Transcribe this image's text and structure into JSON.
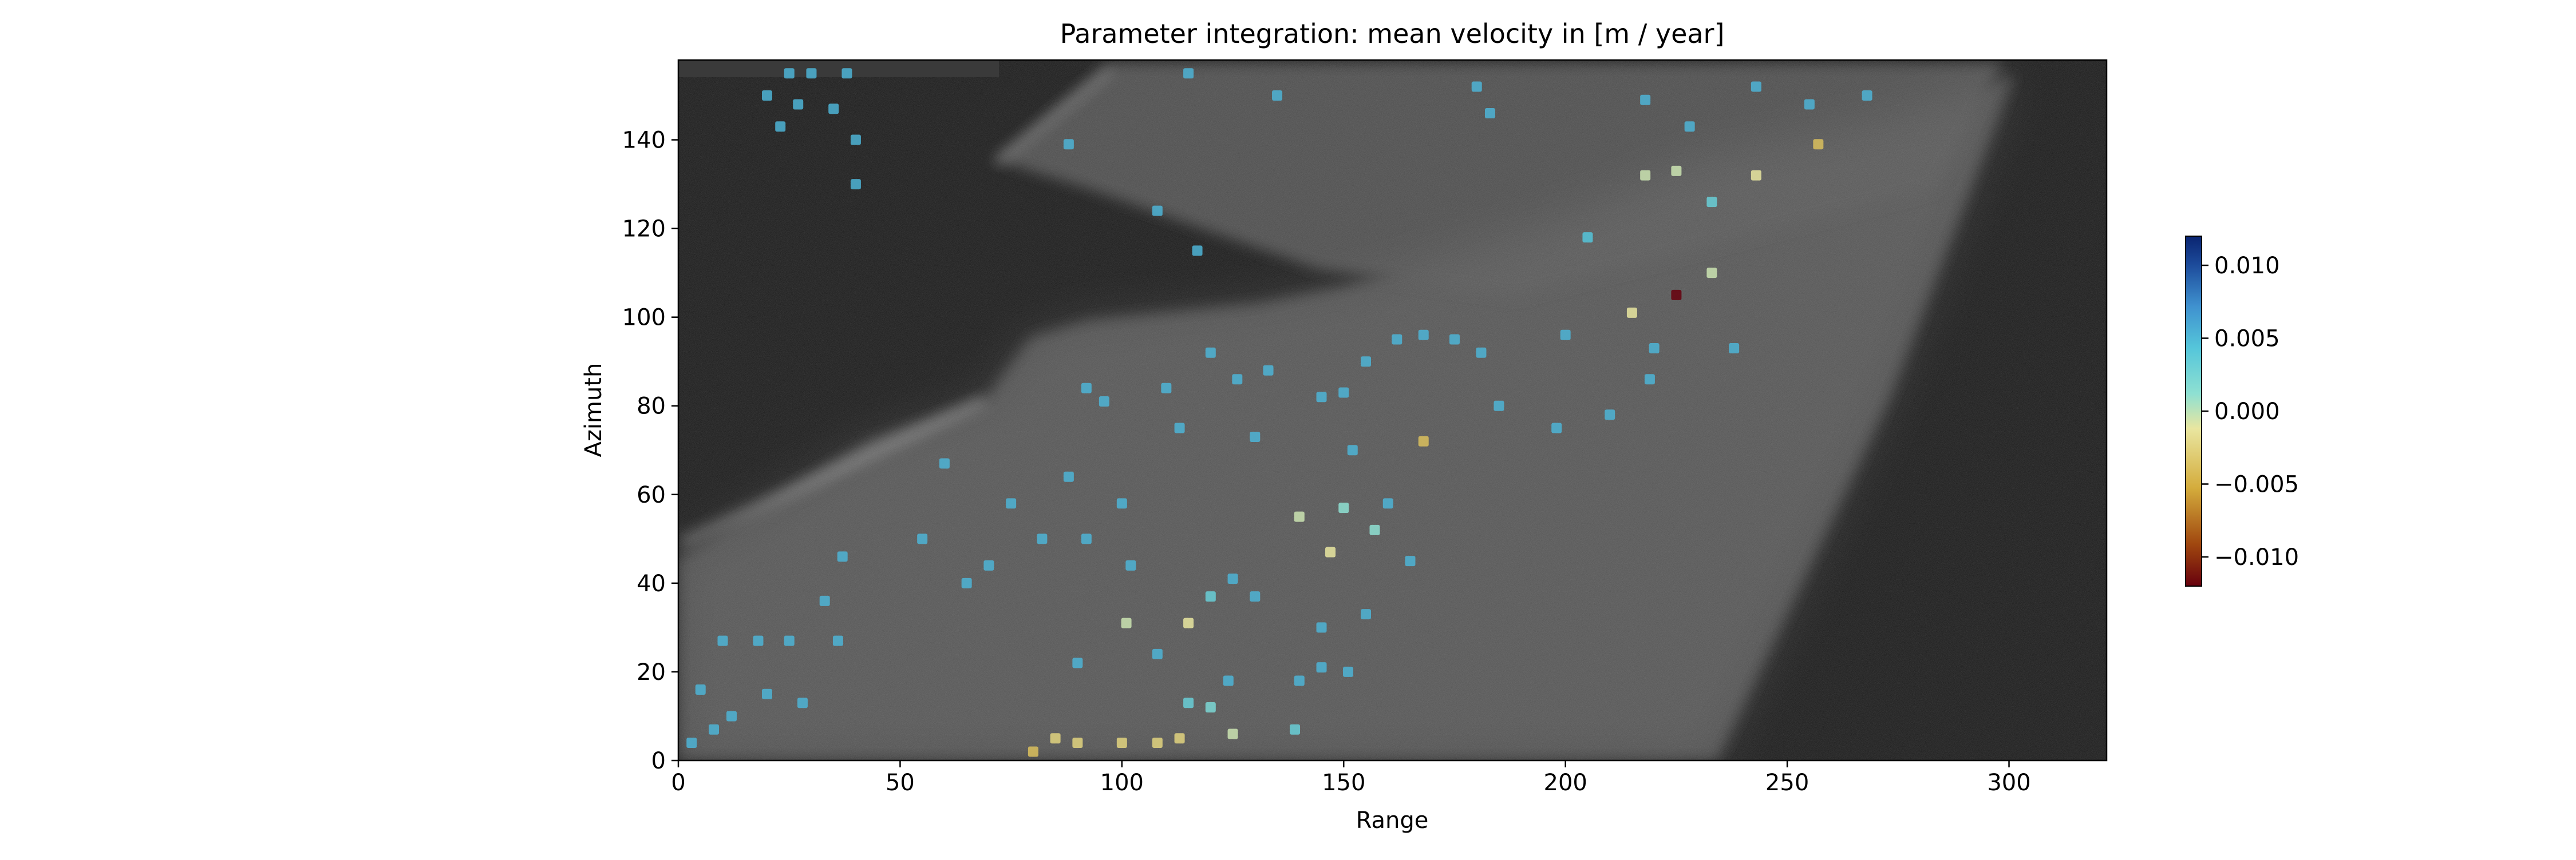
{
  "chart_data": {
    "type": "heatmap",
    "title": "Parameter integration: mean velocity in [m / year]",
    "xlabel": "Range",
    "ylabel": "Azimuth",
    "xlim": [
      0,
      322
    ],
    "ylim": [
      0,
      158
    ],
    "x_ticks": [
      0,
      50,
      100,
      150,
      200,
      250,
      300
    ],
    "y_ticks": [
      0,
      20,
      40,
      60,
      80,
      100,
      120,
      140
    ],
    "grid": false,
    "background": "grayscale SAR amplitude image",
    "colorbar": {
      "position": "right",
      "range": [
        -0.012,
        0.012
      ],
      "ticks": [
        0.01,
        0.005,
        0.0,
        -0.005,
        -0.01
      ],
      "tick_labels": [
        "0.010",
        "0.005",
        "0.000",
        "−0.005",
        "−0.010"
      ],
      "colormap_stops": [
        "#67000d",
        "#a0470f",
        "#d4ac3c",
        "#e9e6a0",
        "#8ee0d2",
        "#55c6da",
        "#3f91cf",
        "#1c4a9a",
        "#0a2470"
      ]
    },
    "points": [
      {
        "x": 25,
        "y": 155,
        "v": 0.004
      },
      {
        "x": 30,
        "y": 155,
        "v": 0.004
      },
      {
        "x": 38,
        "y": 155,
        "v": 0.004
      },
      {
        "x": 20,
        "y": 150,
        "v": 0.004
      },
      {
        "x": 27,
        "y": 148,
        "v": 0.004
      },
      {
        "x": 35,
        "y": 147,
        "v": 0.004
      },
      {
        "x": 40,
        "y": 140,
        "v": 0.004
      },
      {
        "x": 40,
        "y": 130,
        "v": 0.004
      },
      {
        "x": 23,
        "y": 143,
        "v": 0.004
      },
      {
        "x": 115,
        "y": 155,
        "v": 0.004
      },
      {
        "x": 135,
        "y": 150,
        "v": 0.004
      },
      {
        "x": 180,
        "y": 152,
        "v": 0.004
      },
      {
        "x": 183,
        "y": 146,
        "v": 0.004
      },
      {
        "x": 218,
        "y": 149,
        "v": 0.004
      },
      {
        "x": 268,
        "y": 150,
        "v": 0.004
      },
      {
        "x": 88,
        "y": 139,
        "v": 0.004
      },
      {
        "x": 108,
        "y": 124,
        "v": 0.004
      },
      {
        "x": 117,
        "y": 115,
        "v": 0.004
      },
      {
        "x": 257,
        "y": 139,
        "v": -0.005
      },
      {
        "x": 218,
        "y": 132,
        "v": -0.002
      },
      {
        "x": 225,
        "y": 133,
        "v": -0.002
      },
      {
        "x": 233,
        "y": 126,
        "v": 0.002
      },
      {
        "x": 243,
        "y": 132,
        "v": -0.003
      },
      {
        "x": 225,
        "y": 105,
        "v": -0.012
      },
      {
        "x": 215,
        "y": 101,
        "v": -0.003
      },
      {
        "x": 233,
        "y": 110,
        "v": -0.002
      },
      {
        "x": 205,
        "y": 118,
        "v": 0.003
      },
      {
        "x": 181,
        "y": 92,
        "v": 0.004
      },
      {
        "x": 175,
        "y": 95,
        "v": 0.004
      },
      {
        "x": 162,
        "y": 95,
        "v": 0.004
      },
      {
        "x": 168,
        "y": 96,
        "v": 0.004
      },
      {
        "x": 155,
        "y": 90,
        "v": 0.004
      },
      {
        "x": 133,
        "y": 88,
        "v": 0.004
      },
      {
        "x": 120,
        "y": 92,
        "v": 0.004
      },
      {
        "x": 126,
        "y": 86,
        "v": 0.004
      },
      {
        "x": 150,
        "y": 83,
        "v": 0.004
      },
      {
        "x": 152,
        "y": 70,
        "v": 0.004
      },
      {
        "x": 168,
        "y": 72,
        "v": -0.005
      },
      {
        "x": 130,
        "y": 73,
        "v": 0.004
      },
      {
        "x": 96,
        "y": 81,
        "v": 0.004
      },
      {
        "x": 110,
        "y": 84,
        "v": 0.004
      },
      {
        "x": 113,
        "y": 75,
        "v": 0.004
      },
      {
        "x": 145,
        "y": 82,
        "v": 0.004
      },
      {
        "x": 198,
        "y": 75,
        "v": 0.004
      },
      {
        "x": 210,
        "y": 78,
        "v": 0.004
      },
      {
        "x": 219,
        "y": 86,
        "v": 0.004
      },
      {
        "x": 238,
        "y": 93,
        "v": 0.004
      },
      {
        "x": 220,
        "y": 93,
        "v": 0.004
      },
      {
        "x": 150,
        "y": 57,
        "v": 0.0
      },
      {
        "x": 147,
        "y": 47,
        "v": -0.003
      },
      {
        "x": 157,
        "y": 52,
        "v": 0.0
      },
      {
        "x": 140,
        "y": 55,
        "v": -0.002
      },
      {
        "x": 165,
        "y": 45,
        "v": 0.004
      },
      {
        "x": 120,
        "y": 37,
        "v": 0.002
      },
      {
        "x": 130,
        "y": 37,
        "v": 0.004
      },
      {
        "x": 155,
        "y": 33,
        "v": 0.004
      },
      {
        "x": 145,
        "y": 30,
        "v": 0.004
      },
      {
        "x": 115,
        "y": 31,
        "v": -0.003
      },
      {
        "x": 101,
        "y": 31,
        "v": -0.002
      },
      {
        "x": 90,
        "y": 22,
        "v": 0.004
      },
      {
        "x": 108,
        "y": 24,
        "v": 0.004
      },
      {
        "x": 140,
        "y": 18,
        "v": 0.004
      },
      {
        "x": 145,
        "y": 21,
        "v": 0.004
      },
      {
        "x": 151,
        "y": 20,
        "v": 0.004
      },
      {
        "x": 124,
        "y": 18,
        "v": 0.004
      },
      {
        "x": 115,
        "y": 13,
        "v": 0.002
      },
      {
        "x": 120,
        "y": 12,
        "v": 0.001
      },
      {
        "x": 139,
        "y": 7,
        "v": 0.002
      },
      {
        "x": 125,
        "y": 6,
        "v": -0.002
      },
      {
        "x": 85,
        "y": 5,
        "v": -0.004
      },
      {
        "x": 90,
        "y": 4,
        "v": -0.004
      },
      {
        "x": 100,
        "y": 4,
        "v": -0.004
      },
      {
        "x": 108,
        "y": 4,
        "v": -0.004
      },
      {
        "x": 113,
        "y": 5,
        "v": -0.004
      },
      {
        "x": 80,
        "y": 2,
        "v": -0.005
      },
      {
        "x": 37,
        "y": 46,
        "v": 0.004
      },
      {
        "x": 33,
        "y": 36,
        "v": 0.004
      },
      {
        "x": 36,
        "y": 27,
        "v": 0.004
      },
      {
        "x": 18,
        "y": 27,
        "v": 0.004
      },
      {
        "x": 10,
        "y": 27,
        "v": 0.004
      },
      {
        "x": 25,
        "y": 27,
        "v": 0.004
      },
      {
        "x": 28,
        "y": 13,
        "v": 0.004
      },
      {
        "x": 20,
        "y": 15,
        "v": 0.004
      },
      {
        "x": 8,
        "y": 7,
        "v": 0.004
      },
      {
        "x": 5,
        "y": 16,
        "v": 0.004
      },
      {
        "x": 12,
        "y": 10,
        "v": 0.004
      },
      {
        "x": 3,
        "y": 4,
        "v": 0.004
      },
      {
        "x": 55,
        "y": 50,
        "v": 0.004
      },
      {
        "x": 70,
        "y": 44,
        "v": 0.004
      },
      {
        "x": 82,
        "y": 50,
        "v": 0.004
      },
      {
        "x": 92,
        "y": 50,
        "v": 0.004
      },
      {
        "x": 65,
        "y": 40,
        "v": 0.004
      },
      {
        "x": 60,
        "y": 67,
        "v": 0.004
      },
      {
        "x": 75,
        "y": 58,
        "v": 0.004
      },
      {
        "x": 88,
        "y": 64,
        "v": 0.004
      },
      {
        "x": 100,
        "y": 58,
        "v": 0.004
      },
      {
        "x": 102,
        "y": 44,
        "v": 0.004
      },
      {
        "x": 92,
        "y": 84,
        "v": 0.004
      },
      {
        "x": 125,
        "y": 41,
        "v": 0.004
      },
      {
        "x": 160,
        "y": 58,
        "v": 0.004
      },
      {
        "x": 185,
        "y": 80,
        "v": 0.004
      },
      {
        "x": 200,
        "y": 96,
        "v": 0.004
      },
      {
        "x": 243,
        "y": 152,
        "v": 0.004
      },
      {
        "x": 255,
        "y": 148,
        "v": 0.004
      },
      {
        "x": 228,
        "y": 143,
        "v": 0.004
      }
    ]
  }
}
